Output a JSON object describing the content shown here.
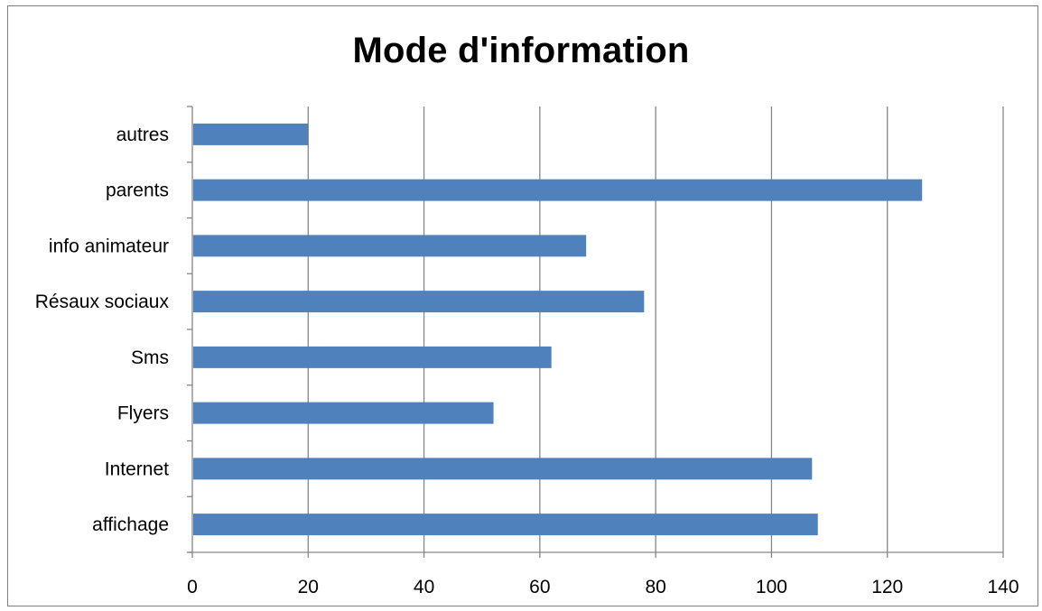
{
  "chart_data": {
    "type": "bar",
    "orientation": "horizontal",
    "title": "Mode d'information",
    "xlabel": "",
    "ylabel": "",
    "categories": [
      "affichage",
      "Internet",
      "Flyers",
      "Sms",
      "Résaux sociaux",
      "info animateur",
      "parents",
      "autres"
    ],
    "values": [
      108,
      107,
      52,
      62,
      78,
      68,
      126,
      20
    ],
    "xlim": [
      0,
      140
    ],
    "xticks": [
      "0",
      "20",
      "40",
      "60",
      "80",
      "100",
      "120",
      "140"
    ],
    "grid": "vertical",
    "legend": "none",
    "colors": {
      "bar": "#4f81bd",
      "gridline": "#868686",
      "axis": "#868686"
    }
  }
}
